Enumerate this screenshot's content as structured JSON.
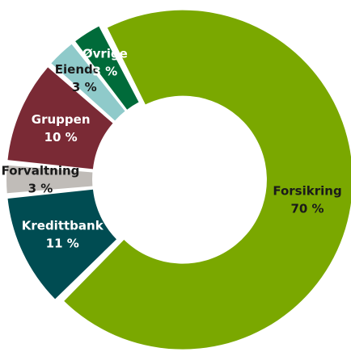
{
  "chart_data": {
    "type": "donut",
    "categories": [
      "Forsikring",
      "Kredittbank",
      "Forvaltning",
      "Gruppen",
      "Eiendom",
      "Øvrige"
    ],
    "values": [
      70,
      11,
      3,
      10,
      3,
      3
    ],
    "value_labels": [
      "70 %",
      "11 %",
      "3 %",
      "10 %",
      "3 %",
      "3 %"
    ],
    "colors": [
      "#7aa800",
      "#004c52",
      "#c0bcb8",
      "#7a2a35",
      "#8fcaca",
      "#006b3a"
    ]
  }
}
